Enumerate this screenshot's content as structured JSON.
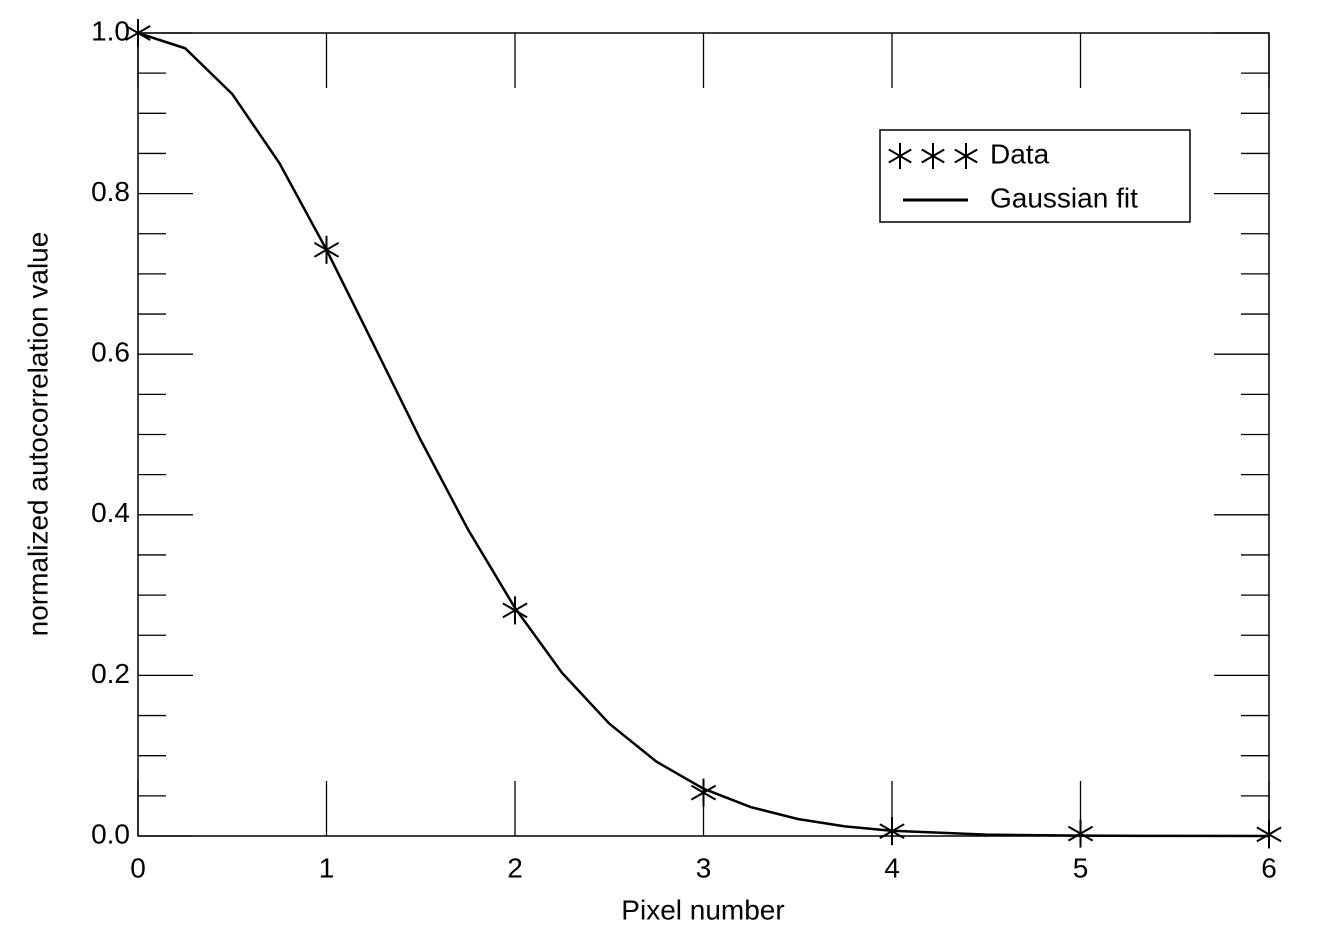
{
  "chart_data": {
    "type": "line",
    "x_label": "Pixel number",
    "y_label": "normalized autocorrelation value",
    "series": [
      {
        "name": "Data",
        "style": "markers",
        "color": "#000000",
        "x": [
          0,
          1,
          2,
          3,
          4,
          5,
          6
        ],
        "values": [
          1.0,
          0.73,
          0.281,
          0.054,
          0.006,
          0.003,
          0.002
        ]
      },
      {
        "name": "Gaussian fit",
        "style": "line",
        "color": "#000000",
        "x": [
          0,
          0.25,
          0.5,
          0.75,
          1,
          1.25,
          1.5,
          1.75,
          2,
          2.25,
          2.5,
          2.75,
          3,
          3.25,
          3.5,
          3.75,
          4,
          4.5,
          5,
          5.5,
          6
        ],
        "values": [
          1.0,
          0.981,
          0.924,
          0.838,
          0.73,
          0.612,
          0.493,
          0.382,
          0.284,
          0.203,
          0.14,
          0.0926,
          0.0589,
          0.036,
          0.0212,
          0.012,
          0.0065,
          0.0017,
          0.0004,
          0.0001,
          0.0
        ]
      }
    ],
    "xlim": [
      0,
      6
    ],
    "xticks": [
      0,
      1,
      2,
      3,
      4,
      5,
      6
    ],
    "ylim": [
      0,
      1
    ],
    "yticks": [
      {
        "value": 0,
        "label": "0.0"
      },
      0.2,
      0.4,
      0.6,
      0.8,
      {
        "value": 1,
        "label": "1.0"
      }
    ],
    "yminorticks": [
      0.05,
      0.1,
      0.15,
      0.25,
      0.3,
      0.35,
      0.45,
      0.5,
      0.55,
      0.65,
      0.7,
      0.75,
      0.85,
      0.9,
      0.95
    ],
    "legend": "upper right"
  }
}
